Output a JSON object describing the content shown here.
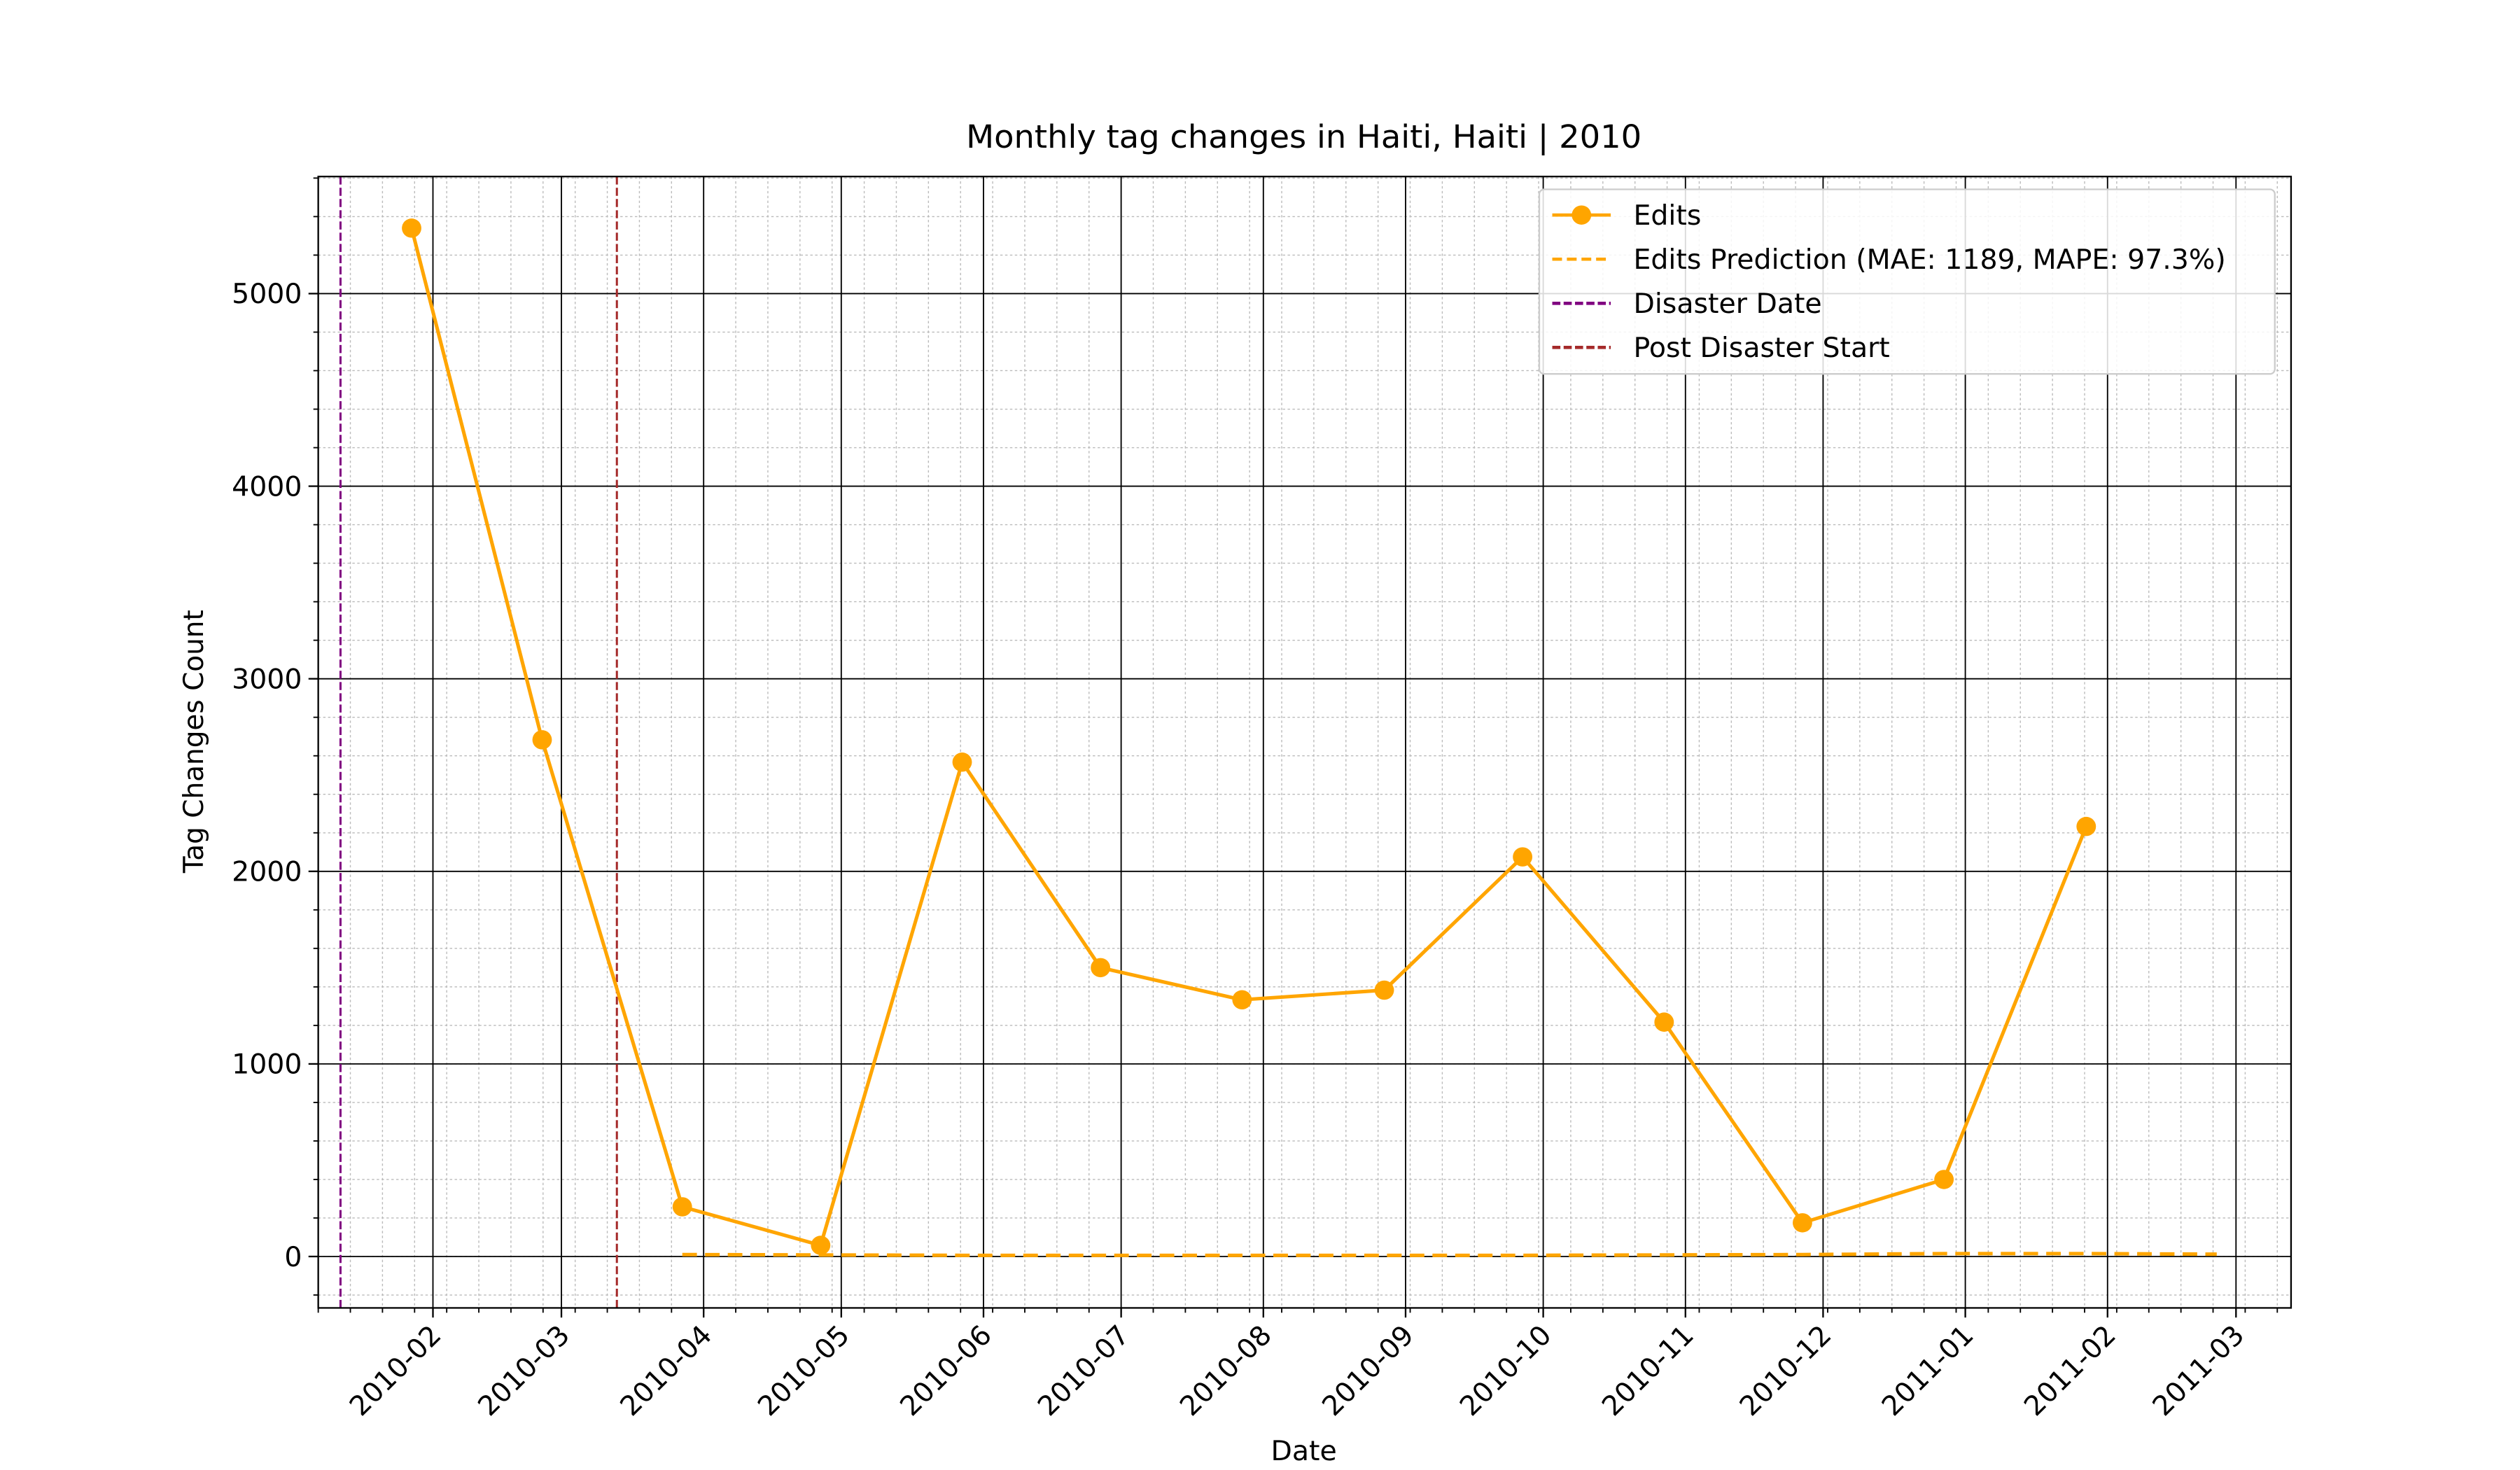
{
  "chart_data": {
    "type": "line",
    "title": "Monthly tag changes in Haiti, Haiti | 2010",
    "xlabel": "Date",
    "ylabel": "Tag Changes Count",
    "x": [
      "2010-01",
      "2010-02",
      "2010-03",
      "2010-04",
      "2010-05",
      "2010-06",
      "2010-07",
      "2010-08",
      "2010-09",
      "2010-10",
      "2010-11",
      "2010-12",
      "2011-01",
      "2011-02"
    ],
    "series": [
      {
        "name": "Edits",
        "color": "#ffa500",
        "style": "solid",
        "marker": true,
        "values": [
          5340,
          2683,
          258,
          58,
          2567,
          1500,
          1333,
          1383,
          2075,
          1217,
          175,
          400,
          2233,
          null
        ]
      },
      {
        "name": "Edits Prediction (MAE: 1189, MAPE: 97.3%)",
        "color": "#ffa500",
        "style": "dashed",
        "marker": false,
        "values": [
          null,
          null,
          10,
          8,
          6,
          6,
          6,
          6,
          6,
          8,
          10,
          15,
          15,
          12
        ]
      }
    ],
    "vlines": [
      {
        "name": "Disaster Date",
        "x": "2010-01",
        "color": "#800080"
      },
      {
        "name": "Post Disaster Start",
        "x": "2010-03",
        "color": "#a52a2a"
      }
    ],
    "xticks": [
      "2010-02",
      "2010-03",
      "2010-04",
      "2010-05",
      "2010-06",
      "2010-07",
      "2010-08",
      "2010-09",
      "2010-10",
      "2010-11",
      "2010-12",
      "2011-01",
      "2011-02",
      "2011-03"
    ],
    "ylim": [
      -267,
      5608
    ],
    "yticks": [
      0,
      1000,
      2000,
      3000,
      4000,
      5000
    ],
    "grid": true,
    "legend": "upper right"
  }
}
